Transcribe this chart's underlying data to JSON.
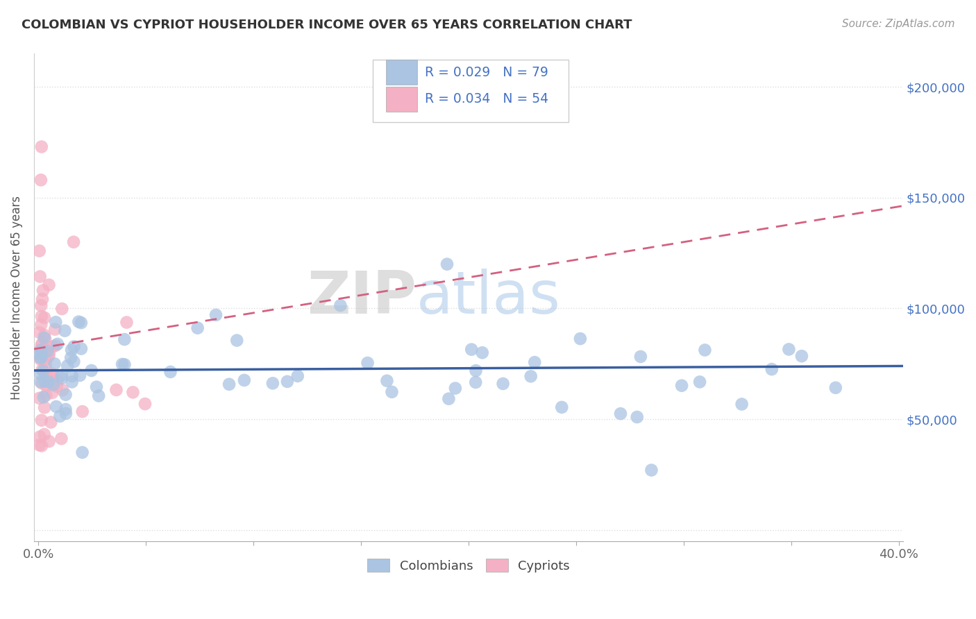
{
  "title": "COLOMBIAN VS CYPRIOT HOUSEHOLDER INCOME OVER 65 YEARS CORRELATION CHART",
  "source": "Source: ZipAtlas.com",
  "ylabel": "Householder Income Over 65 years",
  "xlim": [
    -0.002,
    0.402
  ],
  "ylim": [
    -5000,
    215000
  ],
  "yticks": [
    0,
    50000,
    100000,
    150000,
    200000
  ],
  "colombian_color": "#aac4e2",
  "colombian_edge": "#aac4e2",
  "cypriot_color": "#f4b0c4",
  "cypriot_edge": "#f4b0c4",
  "colombian_line_color": "#3a5fa0",
  "cypriot_line_color": "#d46080",
  "R_colombian": 0.029,
  "N_colombian": 79,
  "R_cypriot": 0.034,
  "N_cypriot": 54,
  "legend_label_colombian": "Colombians",
  "legend_label_cypriot": "Cypriots",
  "background_color": "#ffffff",
  "grid_color": "#dddddd",
  "title_color": "#333333",
  "source_color": "#999999",
  "axis_label_color": "#555555",
  "right_tick_color": "#4472c4",
  "watermark_zip_color": "#c8c8c8",
  "watermark_atlas_color": "#a8c8e8",
  "col_trend_intercept": 72000,
  "col_trend_slope": 5000,
  "cyp_trend_intercept": 82000,
  "cyp_trend_slope": 160000
}
